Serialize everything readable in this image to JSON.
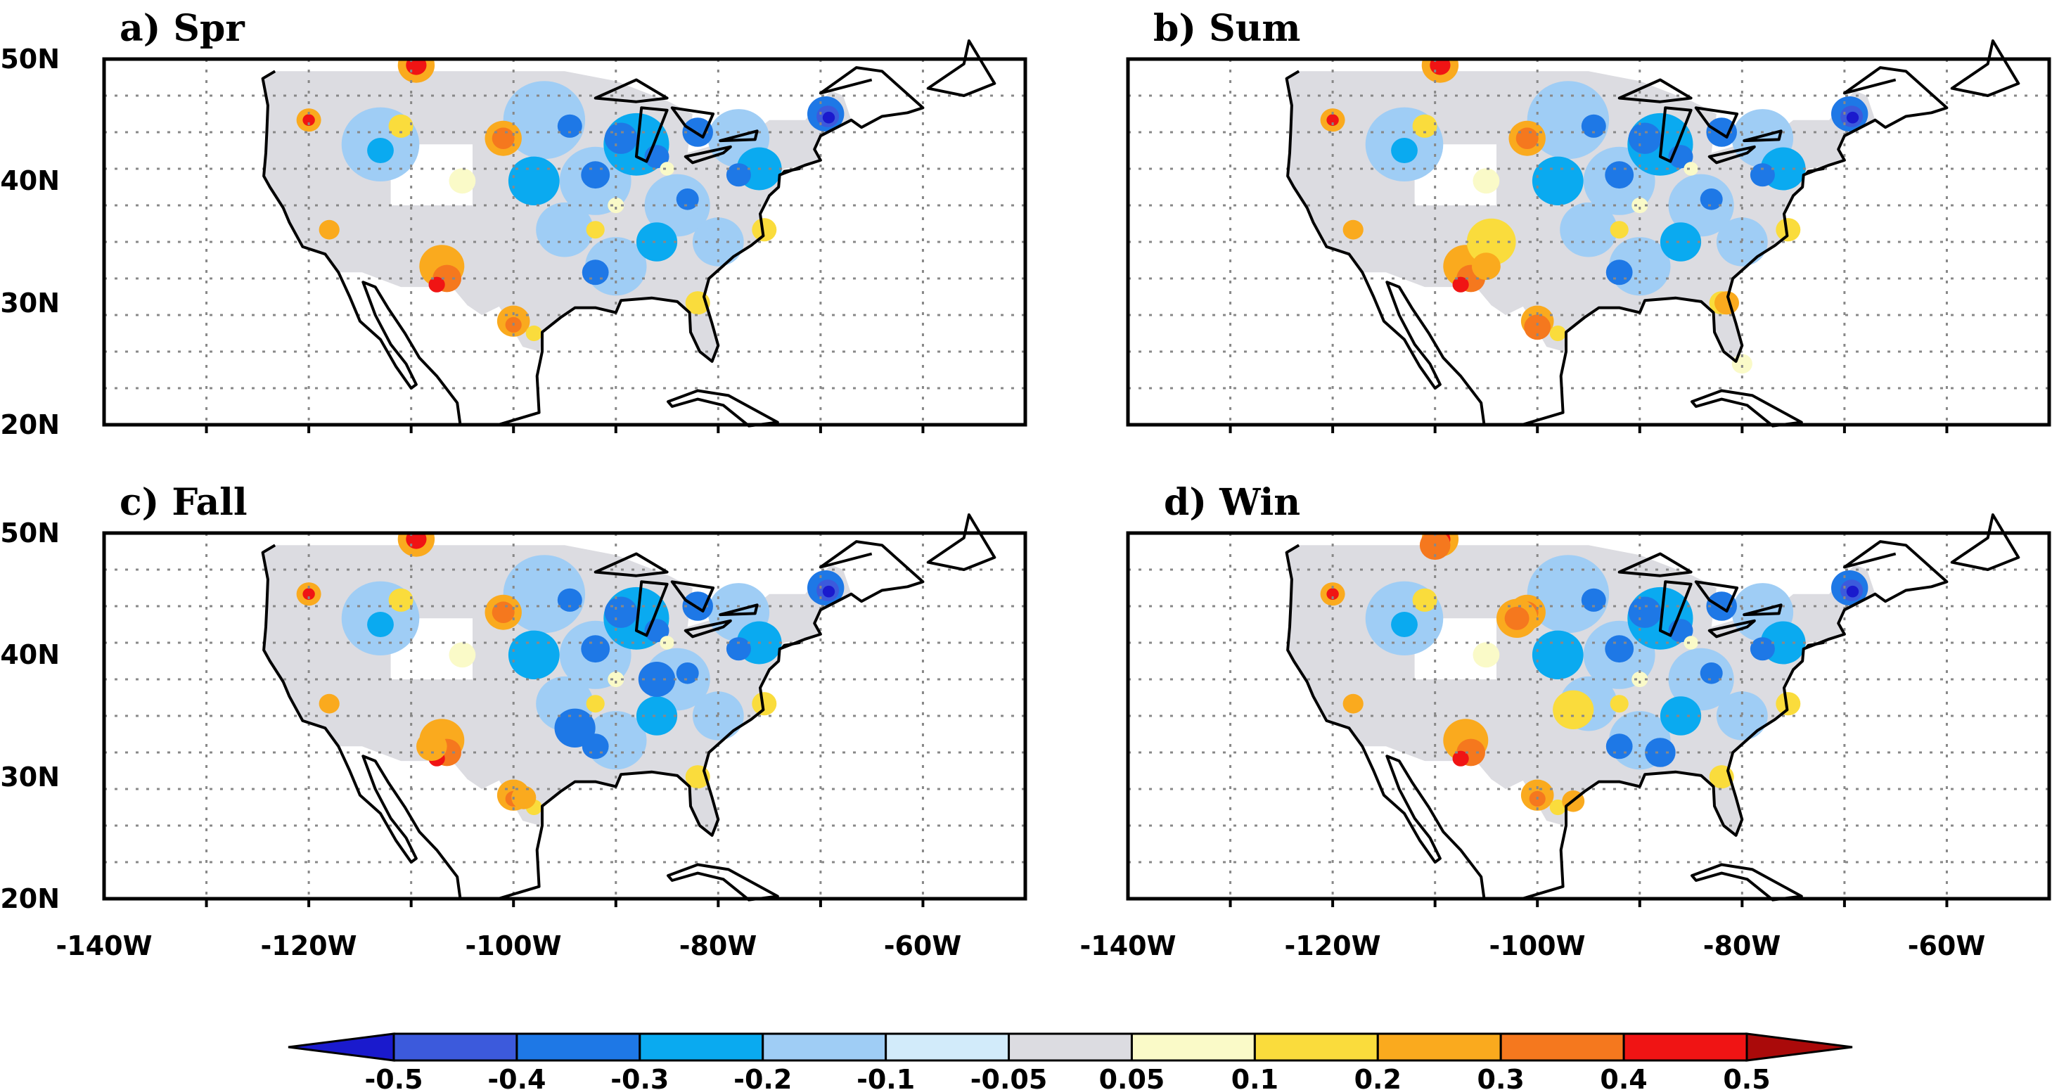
{
  "figure": {
    "panels": [
      {
        "title": "a) Spr",
        "season": "Spring"
      },
      {
        "title": "b) Sum",
        "season": "Summer"
      },
      {
        "title": "c) Fall",
        "season": "Fall"
      },
      {
        "title": "d) Win",
        "season": "Winter"
      }
    ],
    "lat_labels": [
      "50N",
      "40N",
      "30N",
      "20N"
    ],
    "lon_labels": [
      "-140W",
      "-120W",
      "-100W",
      "-80W",
      "-60W"
    ]
  },
  "colorbar": {
    "labels": [
      "-0.5",
      "-0.4",
      "-0.3",
      "-0.2",
      "-0.1",
      "-0.05",
      "0.05",
      "0.1",
      "0.2",
      "0.3",
      "0.4",
      "0.5"
    ],
    "colors": [
      "#1a1acd",
      "#3c5adc",
      "#1e78e6",
      "#0aaaf0",
      "#9fcdf5",
      "#d2ebfa",
      "#dcdce1",
      "#fafac8",
      "#fadc3c",
      "#faaa1e",
      "#f5781e",
      "#f01414",
      "#aa0a0a"
    ]
  },
  "chart_data": {
    "type": "heatmap",
    "variable_range": [
      -0.5,
      0.5
    ],
    "lon_range": [
      -140,
      -50
    ],
    "lat_range": [
      20,
      50
    ],
    "grid_lon_step": 10,
    "grid_lat_step": 3,
    "levels": [
      -0.5,
      -0.4,
      -0.3,
      -0.2,
      -0.1,
      -0.05,
      0.05,
      0.1,
      0.2,
      0.3,
      0.4,
      0.5
    ]
  }
}
